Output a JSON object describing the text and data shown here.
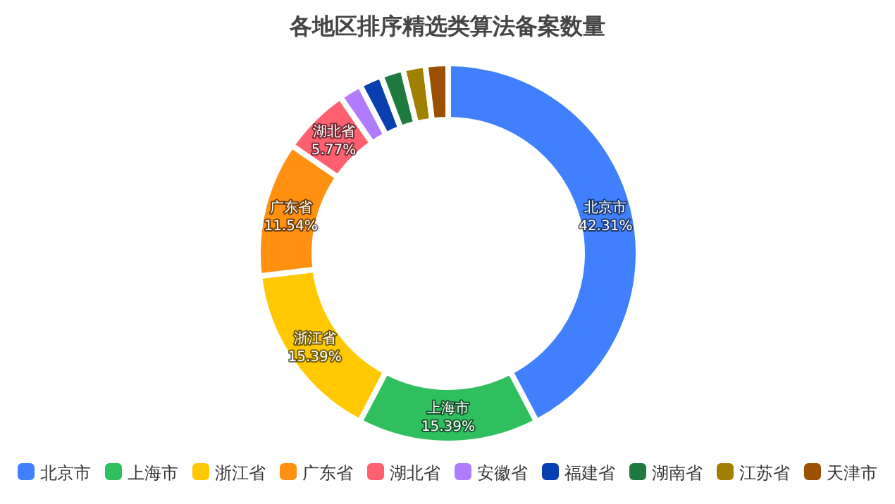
{
  "chart_data": {
    "type": "donut",
    "title": "各地区排序精选类算法备案数量",
    "categories": [
      "北京市",
      "上海市",
      "浙江省",
      "广东省",
      "湖北省",
      "安徽省",
      "福建省",
      "湖南省",
      "江苏省",
      "天津市"
    ],
    "values": [
      42.31,
      15.39,
      15.39,
      11.54,
      5.77,
      1.92,
      1.92,
      1.92,
      1.92,
      1.92
    ],
    "value_labels": [
      "42.31%",
      "15.39%",
      "15.39%",
      "11.54%",
      "5.77%",
      null,
      null,
      null,
      null,
      null
    ],
    "colors": [
      "#4080ff",
      "#2fbf5f",
      "#ffc800",
      "#ff9010",
      "#ff6070",
      "#b07cff",
      "#0a3fb0",
      "#1f7a3f",
      "#a08000",
      "#9a5000"
    ],
    "legend": "bottom"
  }
}
